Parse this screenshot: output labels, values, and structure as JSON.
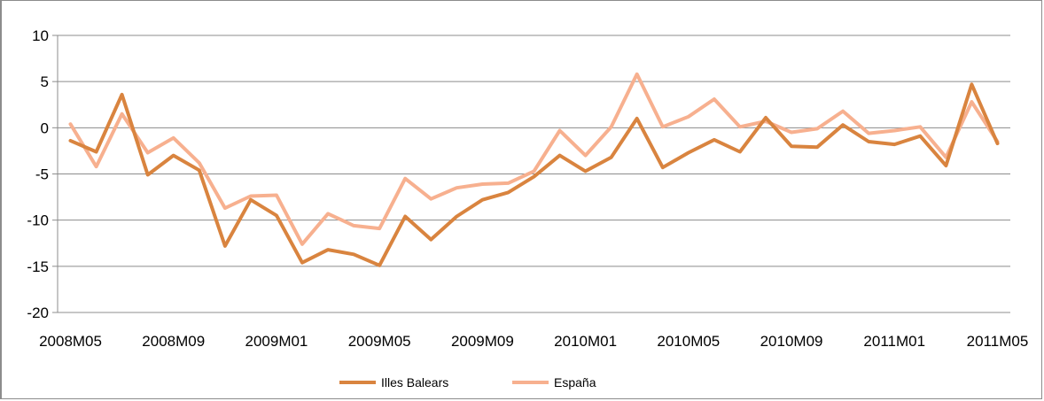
{
  "chart_data": {
    "type": "line",
    "title": "",
    "xlabel": "",
    "ylabel": "",
    "ylim": [
      -20,
      10
    ],
    "yticks": [
      10,
      5,
      0,
      -5,
      -10,
      -15,
      -20
    ],
    "grid": true,
    "legend_position": "bottom",
    "x": [
      "2008M05",
      "2008M06",
      "2008M07",
      "2008M08",
      "2008M09",
      "2008M10",
      "2008M11",
      "2008M12",
      "2009M01",
      "2009M02",
      "2009M03",
      "2009M04",
      "2009M05",
      "2009M06",
      "2009M07",
      "2009M08",
      "2009M09",
      "2009M10",
      "2009M11",
      "2009M12",
      "2010M01",
      "2010M02",
      "2010M03",
      "2010M04",
      "2010M05",
      "2010M06",
      "2010M07",
      "2010M08",
      "2010M09",
      "2010M10",
      "2010M11",
      "2010M12",
      "2011M01",
      "2011M02",
      "2011M03",
      "2011M04",
      "2011M05"
    ],
    "xtick_labels": [
      "2008M05",
      "2008M09",
      "2009M01",
      "2009M05",
      "2009M09",
      "2010M01",
      "2010M05",
      "2010M09",
      "2011M01",
      "2011M05"
    ],
    "series": [
      {
        "name": "Illes Balears",
        "color": "#d9843f",
        "values": [
          -1.4,
          -2.6,
          3.6,
          -5.1,
          -3.0,
          -4.6,
          -12.8,
          -7.8,
          -9.5,
          -14.6,
          -13.2,
          -13.7,
          -14.9,
          -9.6,
          -12.1,
          -9.6,
          -7.8,
          -7.0,
          -5.3,
          -3.0,
          -4.7,
          -3.2,
          1.0,
          -4.3,
          -2.7,
          -1.3,
          -2.6,
          1.1,
          -2.0,
          -2.1,
          0.3,
          -1.5,
          -1.8,
          -0.9,
          -4.1,
          4.7,
          -1.7
        ]
      },
      {
        "name": "España",
        "color": "#f7b08f",
        "values": [
          0.4,
          -4.2,
          1.5,
          -2.7,
          -1.1,
          -3.8,
          -8.7,
          -7.4,
          -7.3,
          -12.6,
          -9.3,
          -10.6,
          -10.9,
          -5.5,
          -7.7,
          -6.5,
          -6.1,
          -6.0,
          -4.7,
          -0.3,
          -3.0,
          0.1,
          5.8,
          0.1,
          1.2,
          3.1,
          0.1,
          0.7,
          -0.5,
          -0.1,
          1.8,
          -0.6,
          -0.3,
          0.1,
          -3.2,
          2.8,
          -1.5
        ]
      }
    ]
  }
}
